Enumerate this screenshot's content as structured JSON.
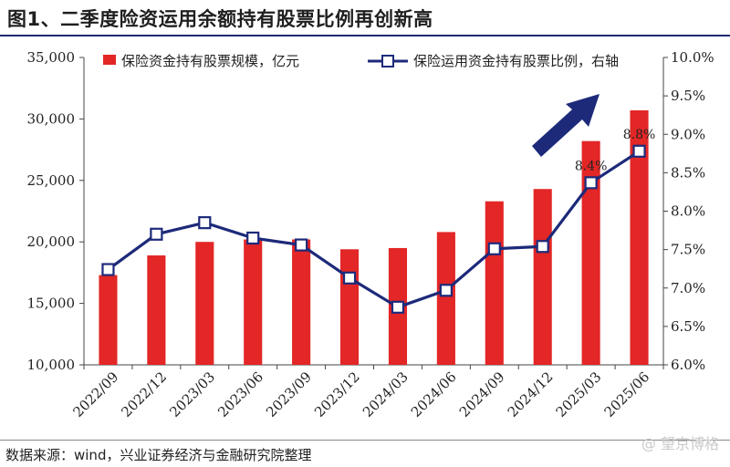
{
  "header": {
    "title": "图1、二季度险资运用余额持有股票比例再创新高"
  },
  "footer": {
    "source": "数据来源：wind，兴业证券经济与金融研究院整理",
    "watermark": "@ 望京博格"
  },
  "colors": {
    "bar": "#e32626",
    "line": "#1d2a7a",
    "arrow": "#1d2a7a"
  },
  "chart_data": {
    "type": "bar",
    "categories": [
      "2022/09",
      "2022/12",
      "2023/03",
      "2023/06",
      "2023/09",
      "2023/12",
      "2024/03",
      "2024/06",
      "2024/09",
      "2024/12",
      "2025/03",
      "2025/06"
    ],
    "series": [
      {
        "name": "保险资金持有股票规模，亿元",
        "type": "bar",
        "axis": "left",
        "values": [
          17300,
          18900,
          20000,
          20200,
          20200,
          19400,
          19500,
          20800,
          23300,
          24300,
          28200,
          30700
        ]
      },
      {
        "name": "保险运用资金持有股票比例，右轴",
        "type": "line",
        "axis": "right",
        "values": [
          7.24,
          7.7,
          7.85,
          7.65,
          7.56,
          7.13,
          6.75,
          6.97,
          7.51,
          7.54,
          8.37,
          8.78
        ]
      }
    ],
    "y_left": {
      "ylim": [
        10000,
        35000
      ],
      "ticks": [
        "10,000",
        "15,000",
        "20,000",
        "25,000",
        "30,000",
        "35,000"
      ],
      "tick_values": [
        10000,
        15000,
        20000,
        25000,
        30000,
        35000
      ]
    },
    "y_right": {
      "ylim": [
        6.0,
        10.0
      ],
      "ticks": [
        "6.0%",
        "6.5%",
        "7.0%",
        "7.5%",
        "8.0%",
        "8.5%",
        "9.0%",
        "9.5%",
        "10.0%"
      ],
      "tick_values": [
        6.0,
        6.5,
        7.0,
        7.5,
        8.0,
        8.5,
        9.0,
        9.5,
        10.0
      ]
    },
    "data_labels": [
      {
        "index": 10,
        "text": "8.4%"
      },
      {
        "index": 11,
        "text": "8.8%"
      }
    ],
    "legend": "top",
    "grid": false
  }
}
